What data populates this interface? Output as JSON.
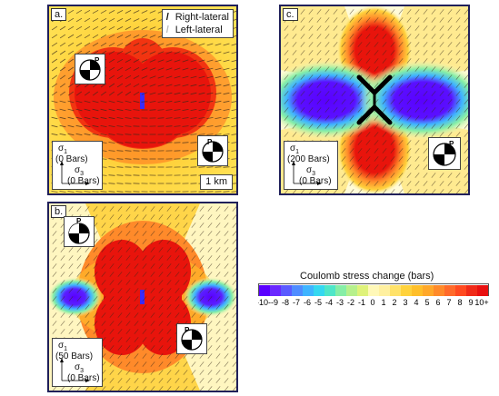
{
  "panels": {
    "a": {
      "label": "a.",
      "sigma1_value": "(0 Bars)",
      "sigma3_value": "(0 Bars)",
      "scale": "1 km",
      "legend": {
        "right_lateral": "Right-lateral",
        "left_lateral": "Left-lateral"
      }
    },
    "b": {
      "label": "b.",
      "sigma1_value": "(50 Bars)",
      "sigma3_value": "(0 Bars)"
    },
    "c": {
      "label": "c.",
      "sigma1_value": "(200 Bars)",
      "sigma3_value": "(0 Bars)"
    }
  },
  "symbols": {
    "sigma1": "σ1",
    "sigma3": "σ3",
    "p_axis": "P"
  },
  "colorbar": {
    "title": "Coulomb stress change (bars)",
    "ticks": [
      "-10-",
      "-9",
      "-8",
      "-7",
      "-6",
      "-5",
      "-4",
      "-3",
      "-2",
      "-1",
      "0",
      "1",
      "2",
      "3",
      "4",
      "5",
      "6",
      "7",
      "8",
      "9",
      "10+"
    ],
    "colors": [
      "#5a00ff",
      "#6a28ff",
      "#5a5aff",
      "#4f8cff",
      "#3fb4ff",
      "#35d8f0",
      "#4fe6c8",
      "#86eea6",
      "#b6f08c",
      "#dff27a",
      "#fff8b8",
      "#fff0a0",
      "#ffe26a",
      "#ffd23c",
      "#ffbf2a",
      "#ffa82a",
      "#ff8a2a",
      "#ff6a2a",
      "#ff4a20",
      "#f02a18",
      "#e81010"
    ]
  }
}
